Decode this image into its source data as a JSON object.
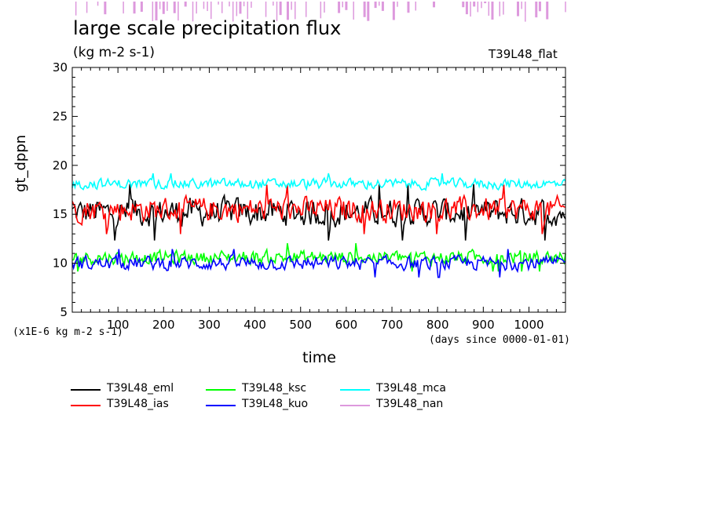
{
  "header": {
    "title": "large scale precipitation flux",
    "units": "(kg m-2 s-1)",
    "model": "T39L48_flat"
  },
  "chart_data": {
    "type": "line",
    "title": "large scale precipitation flux",
    "ylabel": "gt_dppn",
    "xlabel": "time",
    "y_scale_note": "(x1E-6 kg m-2 s-1)",
    "x_units_note": "(days since 0000-01-01)",
    "xlim": [
      0,
      1080
    ],
    "ylim": [
      5,
      30
    ],
    "xticks": [
      100,
      200,
      300,
      400,
      500,
      600,
      700,
      800,
      900,
      1000
    ],
    "yticks": [
      5,
      10,
      15,
      20,
      25,
      30
    ],
    "series": [
      {
        "name": "T39L48_eml",
        "color": "#000000",
        "mean": 15.2,
        "amplitude": 1.6,
        "min": 12.3,
        "max": 19.0
      },
      {
        "name": "T39L48_ias",
        "color": "#ff0000",
        "mean": 15.5,
        "amplitude": 1.4,
        "min": 12.7,
        "max": 19.3
      },
      {
        "name": "T39L48_ksc",
        "color": "#00ff00",
        "mean": 10.6,
        "amplitude": 0.8,
        "min": 8.6,
        "max": 12.6
      },
      {
        "name": "T39L48_kuo",
        "color": "#0000ff",
        "mean": 10.0,
        "amplitude": 0.8,
        "min": 7.9,
        "max": 12.0
      },
      {
        "name": "T39L48_mca",
        "color": "#00ffff",
        "mean": 18.1,
        "amplitude": 0.6,
        "min": 16.8,
        "max": 20.1
      },
      {
        "name": "T39L48_nan",
        "color": "#dd99dd",
        "mean": null,
        "amplitude": null,
        "min": null,
        "max": null
      }
    ]
  }
}
